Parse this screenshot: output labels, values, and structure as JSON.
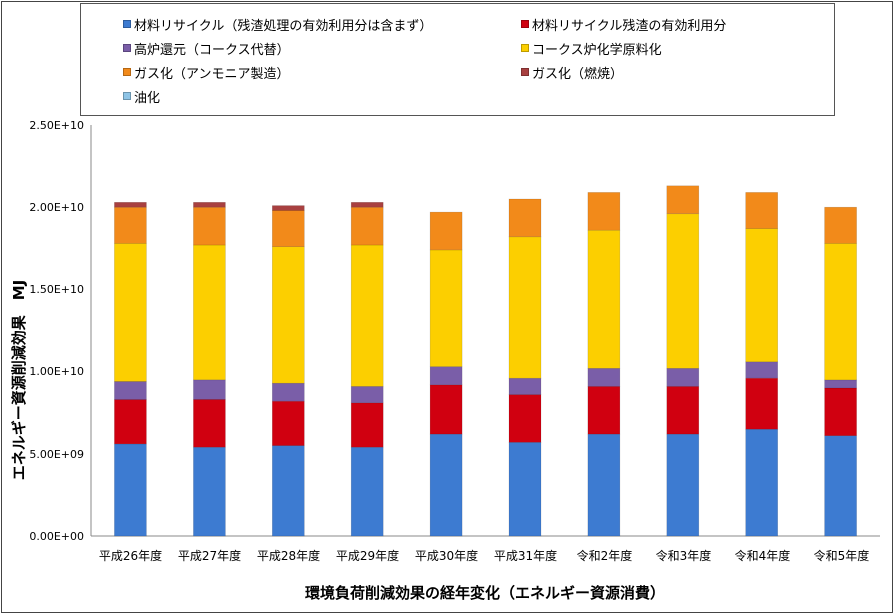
{
  "chart_data": {
    "type": "bar",
    "stacked": true,
    "title": "",
    "xlabel": "環境負荷削減効果の経年変化（エネルギー資源消費）",
    "ylabel": "エネルギー資源削減効果　MJ",
    "ylim": [
      0,
      25000000000
    ],
    "yticks": [
      "0.00E+00",
      "5.00E+09",
      "1.00E+10",
      "1.50E+10",
      "2.00E+10",
      "2.50E+10"
    ],
    "ytick_values": [
      0,
      5000000000,
      10000000000,
      15000000000,
      20000000000,
      25000000000
    ],
    "grid": false,
    "legend_position": "top",
    "categories": [
      "平成26年度",
      "平成27年度",
      "平成28年度",
      "平成29年度",
      "平成30年度",
      "平成31年度",
      "令和2年度",
      "令和3年度",
      "令和4年度",
      "令和5年度"
    ],
    "series": [
      {
        "name": "材料リサイクル（残渣処理の有効利用分は含まず）",
        "color": "#3d7bd1",
        "values": [
          5600000000,
          5400000000,
          5500000000,
          5400000000,
          6200000000,
          5700000000,
          6200000000,
          6200000000,
          6500000000,
          6100000000
        ]
      },
      {
        "name": "材料リサイクル残渣の有効利用分",
        "color": "#d00010",
        "values": [
          2700000000,
          2900000000,
          2700000000,
          2700000000,
          3000000000,
          2900000000,
          2900000000,
          2900000000,
          3100000000,
          2900000000
        ]
      },
      {
        "name": "高炉還元（コークス代替）",
        "color": "#7a5ea8",
        "values": [
          1100000000,
          1200000000,
          1100000000,
          1000000000,
          1100000000,
          1000000000,
          1100000000,
          1100000000,
          1000000000,
          500000000
        ]
      },
      {
        "name": "コークス炉化学原料化",
        "color": "#fccf00",
        "values": [
          8400000000,
          8200000000,
          8300000000,
          8600000000,
          7100000000,
          8600000000,
          8400000000,
          9400000000,
          8100000000,
          8300000000
        ]
      },
      {
        "name": "ガス化（アンモニア製造）",
        "color": "#f28a1a",
        "values": [
          2200000000,
          2300000000,
          2200000000,
          2300000000,
          2300000000,
          2300000000,
          2300000000,
          1700000000,
          2200000000,
          2200000000
        ]
      },
      {
        "name": "ガス化（燃焼）",
        "color": "#a84040",
        "values": [
          300000000,
          300000000,
          300000000,
          300000000,
          0,
          0,
          0,
          0,
          0,
          0
        ]
      },
      {
        "name": "油化",
        "color": "#8ec4e6",
        "values": [
          0,
          0,
          0,
          0,
          0,
          0,
          0,
          0,
          0,
          0
        ]
      }
    ]
  }
}
